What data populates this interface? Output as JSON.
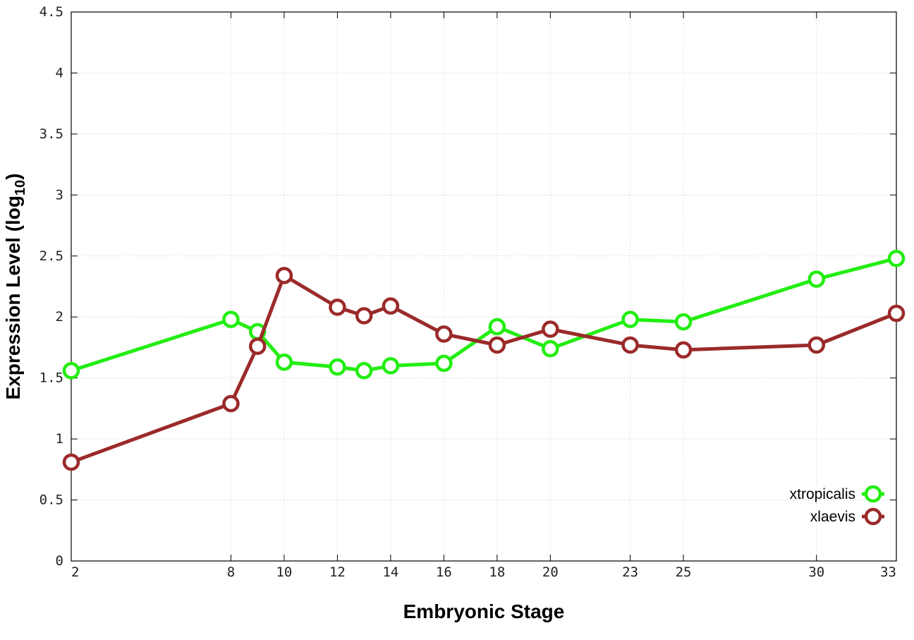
{
  "chart_data": {
    "type": "line",
    "xlabel": "Embryonic Stage",
    "ylabel_main": "Expression Level (log",
    "ylabel_sub": "10",
    "ylabel_close": ")",
    "x": [
      2,
      8,
      9,
      10,
      12,
      13,
      14,
      16,
      18,
      20,
      23,
      25,
      30,
      33
    ],
    "x_ticks": [
      2,
      8,
      10,
      12,
      14,
      16,
      18,
      20,
      23,
      25,
      30,
      33
    ],
    "x_tick_labels": [
      "2",
      "8",
      "10",
      "12",
      "14",
      "16",
      "18",
      "20",
      "23",
      "25",
      "30",
      "33"
    ],
    "xlim": [
      2,
      33
    ],
    "ylim": [
      0,
      4.5
    ],
    "y_ticks": [
      0,
      0.5,
      1,
      1.5,
      2,
      2.5,
      3,
      3.5,
      4,
      4.5
    ],
    "y_tick_labels": [
      "0",
      "0.5",
      "1",
      "1.5",
      "2",
      "2.5",
      "3",
      "3.5",
      "4",
      "4.5"
    ],
    "grid": true,
    "legend_position": "bottom-right",
    "series": [
      {
        "name": "xtropicalis",
        "color": "#22ee11",
        "values": [
          1.56,
          1.98,
          1.88,
          1.63,
          1.59,
          1.56,
          1.6,
          1.62,
          1.92,
          1.74,
          1.98,
          1.96,
          2.31,
          2.48
        ]
      },
      {
        "name": "xlaevis",
        "color": "#9b2a2a",
        "values": [
          0.81,
          1.29,
          1.76,
          2.34,
          2.08,
          2.01,
          2.09,
          1.86,
          1.77,
          1.9,
          1.77,
          1.73,
          1.77,
          2.03
        ]
      }
    ]
  }
}
